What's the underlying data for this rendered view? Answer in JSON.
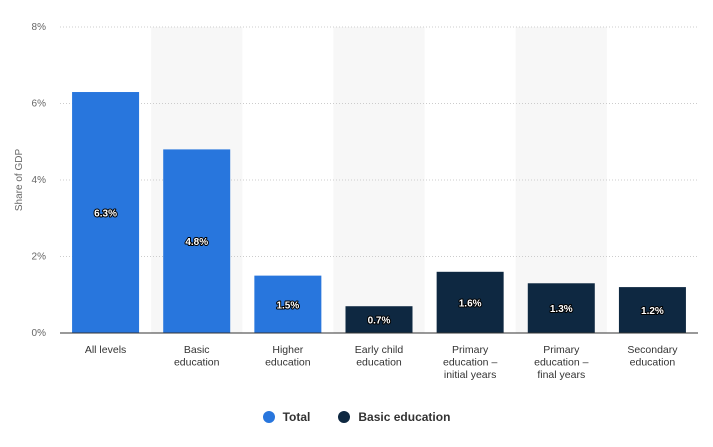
{
  "chart_data": {
    "type": "bar",
    "ylabel": "Share of GDP",
    "ylim": [
      0,
      8
    ],
    "yticks": [
      "0%",
      "2%",
      "4%",
      "6%",
      "8%"
    ],
    "grid": true,
    "legend_position": "bottom-center",
    "categories": [
      [
        "All levels"
      ],
      [
        "Basic",
        "education"
      ],
      [
        "Higher",
        "education"
      ],
      [
        "Early child",
        "education"
      ],
      [
        "Primary",
        "education –",
        "initial years"
      ],
      [
        "Primary",
        "education –",
        "final years"
      ],
      [
        "Secondary",
        "education"
      ]
    ],
    "values": [
      6.3,
      4.8,
      1.5,
      0.7,
      1.6,
      1.3,
      1.2
    ],
    "value_labels": [
      "6.3%",
      "4.8%",
      "1.5%",
      "0.7%",
      "1.6%",
      "1.3%",
      "1.2%"
    ],
    "series_assignment": [
      0,
      0,
      0,
      1,
      1,
      1,
      1
    ],
    "series": [
      {
        "name": "Total",
        "color": "#2876dd"
      },
      {
        "name": "Basic education",
        "color": "#0e2841"
      }
    ],
    "shaded_category_indices": [
      1,
      3,
      5
    ],
    "shade_color": "#f7f7f7"
  },
  "legend": {
    "items": [
      {
        "label": "Total",
        "color": "#2876dd"
      },
      {
        "label": "Basic education",
        "color": "#0e2841"
      }
    ]
  }
}
